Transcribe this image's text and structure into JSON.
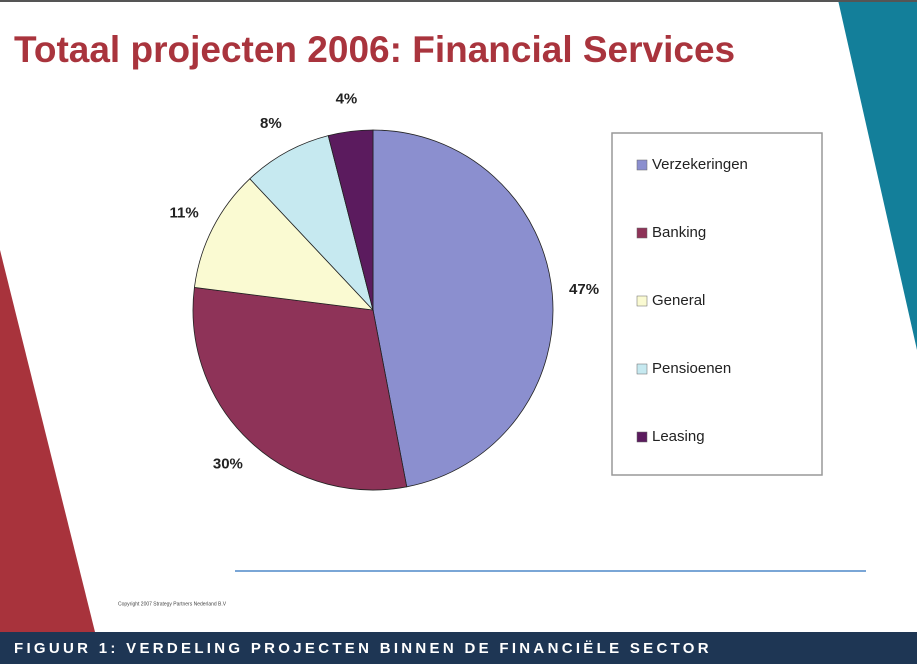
{
  "chart_data": {
    "type": "pie",
    "title": "Totaal projecten 2006: Financial Services",
    "categories": [
      "Verzekeringen",
      "Banking",
      "General",
      "Pensioenen",
      "Leasing"
    ],
    "values": [
      47,
      30,
      11,
      8,
      4
    ],
    "value_labels": [
      "47%",
      "30%",
      "11%",
      "8%",
      "4%"
    ],
    "colors": [
      "#8b8fcf",
      "#8e3358",
      "#fafad2",
      "#c6e9f0",
      "#5b1b5e"
    ],
    "legend": "right",
    "footnote": "Copyright 2007 Strategy Partners Nederland B.V",
    "caption": "FIGUUR 1: VERDELING PROJECTEN BINNEN DE FINANCIËLE SECTOR"
  }
}
